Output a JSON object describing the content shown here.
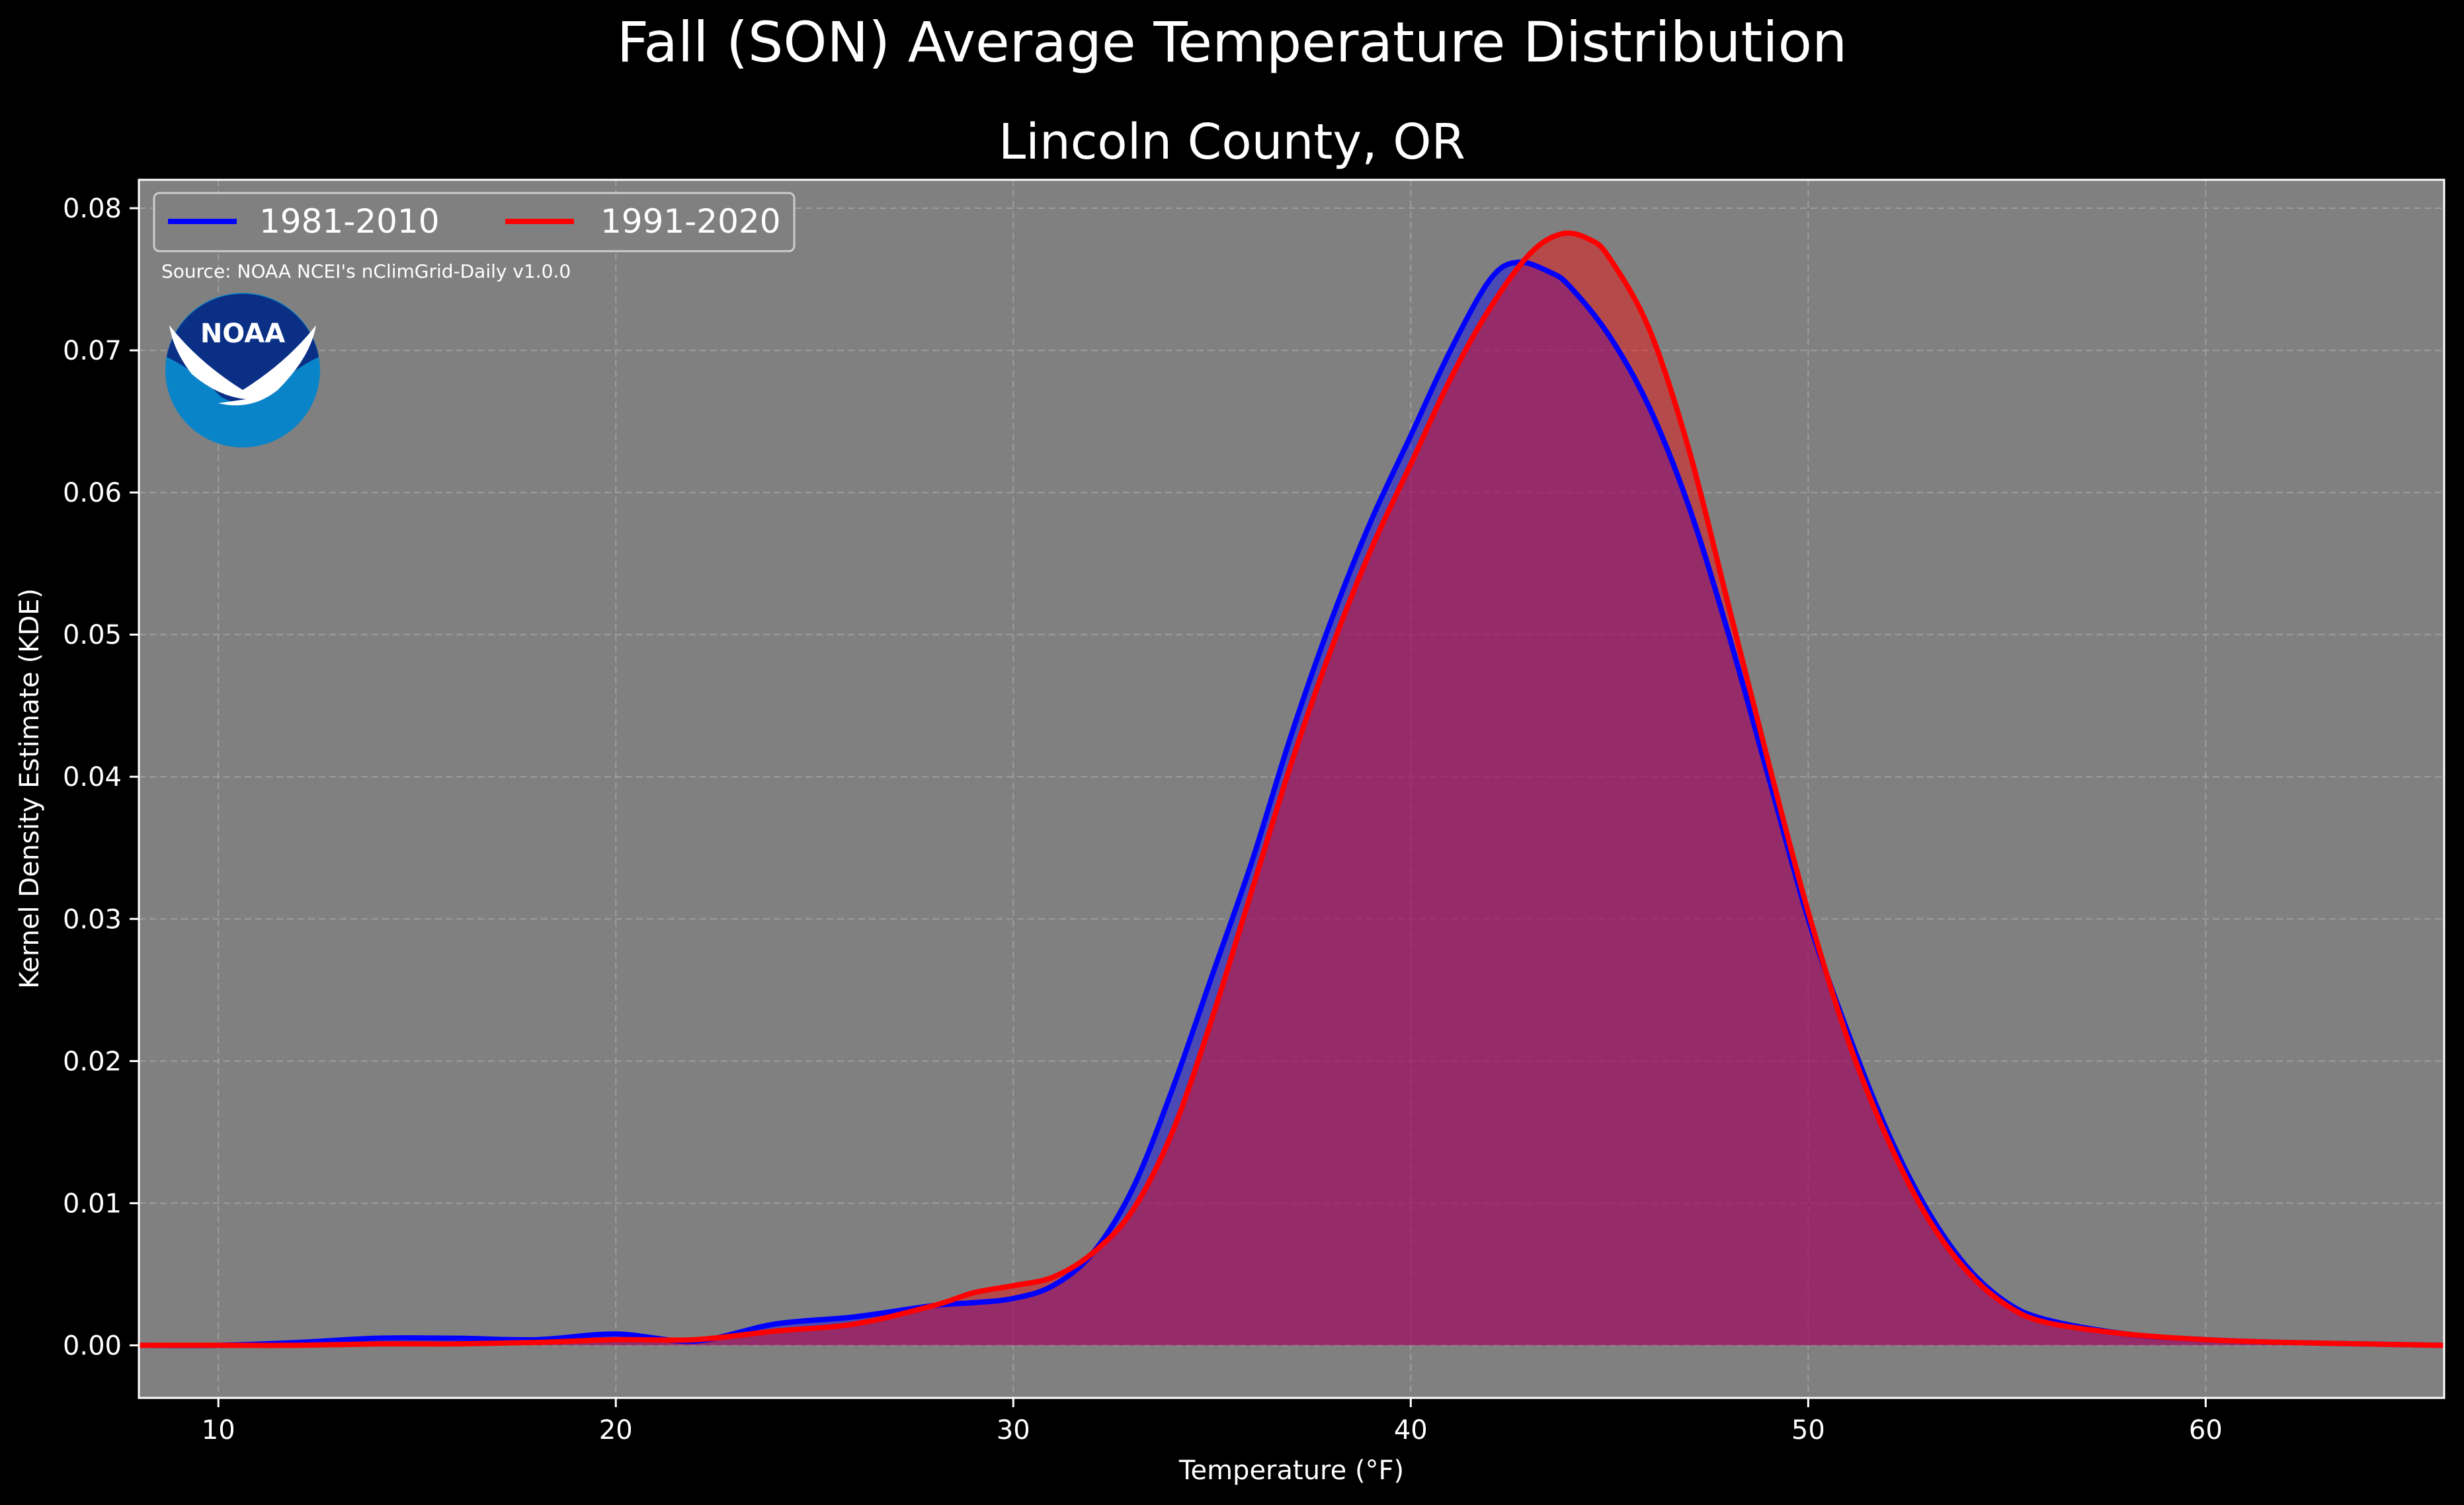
{
  "title": "Fall (SON) Average Temperature Distribution",
  "subtitle": "Lincoln County, OR",
  "source": "Source: NOAA NCEI's nClimGrid-Daily v1.0.0",
  "logo_text": "NOAA",
  "colors": {
    "background": "#000000",
    "plot_background": "#808080",
    "series_1981": "#0000ff",
    "series_1991": "#ff0000",
    "overlap_fill": "#9c1f5c"
  },
  "chart_data": {
    "type": "area",
    "xlabel": "Temperature (°F)",
    "ylabel": "Kernel Density Estimate (KDE)",
    "xlim": [
      8,
      66
    ],
    "ylim": [
      -0.0037,
      0.082
    ],
    "xticks": [
      10,
      20,
      30,
      40,
      50,
      60
    ],
    "xtick_labels": [
      "10",
      "20",
      "30",
      "40",
      "50",
      "60"
    ],
    "yticks": [
      0.0,
      0.01,
      0.02,
      0.03,
      0.04,
      0.05,
      0.06,
      0.07,
      0.08
    ],
    "ytick_labels": [
      "0.00",
      "0.01",
      "0.02",
      "0.03",
      "0.04",
      "0.05",
      "0.06",
      "0.07",
      "0.08"
    ],
    "grid": true,
    "legend": "top-left",
    "series": [
      {
        "name": "1981-2010",
        "color": "#0000ff",
        "x": [
          8,
          10,
          12,
          14,
          16,
          18,
          20,
          22,
          24,
          26,
          28,
          29,
          30,
          31,
          32,
          33,
          34,
          35,
          36,
          37,
          38,
          39,
          40,
          41,
          42,
          42.7,
          43.5,
          44,
          45,
          46,
          47,
          48,
          49,
          50,
          51,
          52,
          53,
          54,
          55,
          56,
          58,
          60,
          62,
          64,
          66
        ],
        "y": [
          0.0,
          0.0,
          0.0002,
          0.0005,
          0.0005,
          0.0004,
          0.0008,
          0.0003,
          0.0015,
          0.002,
          0.0028,
          0.003,
          0.0033,
          0.0042,
          0.0065,
          0.011,
          0.018,
          0.026,
          0.034,
          0.043,
          0.051,
          0.058,
          0.064,
          0.07,
          0.075,
          0.0762,
          0.0755,
          0.0745,
          0.071,
          0.066,
          0.059,
          0.05,
          0.04,
          0.03,
          0.022,
          0.015,
          0.0095,
          0.0055,
          0.003,
          0.0018,
          0.0008,
          0.0004,
          0.0002,
          0.0001,
          0.0
        ]
      },
      {
        "name": "1991-2020",
        "color": "#ff0000",
        "x": [
          8,
          10,
          12,
          14,
          16,
          18,
          20,
          22,
          24,
          26,
          28,
          29,
          30,
          31,
          32,
          33,
          34,
          35,
          36,
          37,
          38,
          39,
          40,
          41,
          42,
          43,
          43.8,
          44.5,
          45,
          46,
          47,
          48,
          49,
          50,
          51,
          52,
          53,
          54,
          55,
          56,
          58,
          60,
          62,
          64,
          66
        ],
        "y": [
          0.0,
          0.0,
          0.0,
          0.0001,
          0.0001,
          0.0002,
          0.0004,
          0.0004,
          0.001,
          0.0015,
          0.0028,
          0.0037,
          0.0042,
          0.0048,
          0.0065,
          0.0095,
          0.015,
          0.023,
          0.032,
          0.041,
          0.049,
          0.056,
          0.062,
          0.068,
          0.073,
          0.0768,
          0.0782,
          0.0778,
          0.0765,
          0.0715,
          0.063,
          0.052,
          0.041,
          0.0305,
          0.0215,
          0.0145,
          0.009,
          0.0052,
          0.0028,
          0.0016,
          0.0008,
          0.0004,
          0.0002,
          0.0001,
          0.0
        ]
      }
    ]
  }
}
